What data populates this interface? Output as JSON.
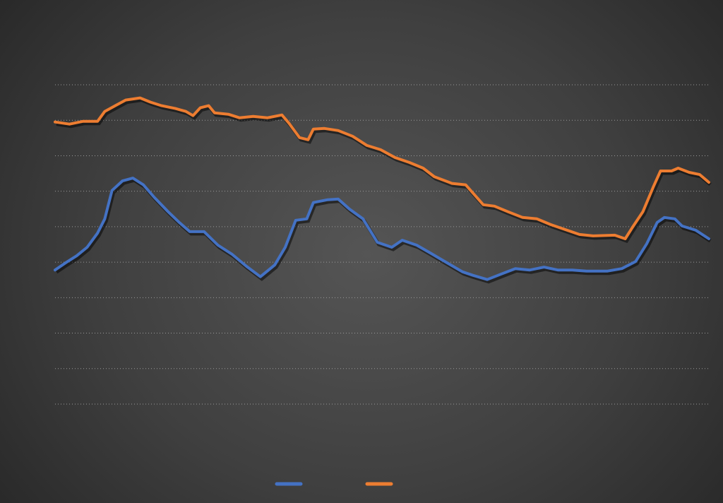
{
  "chart_data": {
    "type": "line",
    "title": "",
    "xlabel": "",
    "ylabel": "",
    "xlim": [
      0,
      100
    ],
    "ylim": [
      0,
      9
    ],
    "grid": true,
    "gridline_style": "dotted",
    "legend_position": "bottom",
    "background": "#3a3a3a",
    "series": [
      {
        "color": "#4472C4",
        "x": [
          0,
          1.6,
          3.3,
          4.9,
          6.5,
          7.6,
          8.7,
          10.3,
          11.9,
          13.5,
          15.2,
          17.3,
          19,
          20.6,
          22.8,
          24.9,
          27.1,
          29.3,
          31.4,
          33.6,
          35.2,
          36.8,
          38.5,
          39.5,
          41.7,
          43.3,
          45,
          47.1,
          49.3,
          51.5,
          53.1,
          55.3,
          57.4,
          59.6,
          62.3,
          63.9,
          66.1,
          68.3,
          70.4,
          72.6,
          74.8,
          76.9,
          79.1,
          81.3,
          84.5,
          86.7,
          88.8,
          90.5,
          92.1,
          93.2,
          94.8,
          95.9,
          98,
          100
        ],
        "y": [
          3.78,
          3.98,
          4.18,
          4.42,
          4.82,
          5.22,
          6.02,
          6.29,
          6.37,
          6.18,
          5.82,
          5.42,
          5.12,
          4.86,
          4.86,
          4.48,
          4.22,
          3.88,
          3.59,
          3.92,
          4.42,
          5.18,
          5.22,
          5.68,
          5.76,
          5.78,
          5.5,
          5.22,
          4.56,
          4.42,
          4.62,
          4.48,
          4.26,
          4.02,
          3.73,
          3.63,
          3.51,
          3.67,
          3.82,
          3.78,
          3.86,
          3.78,
          3.78,
          3.75,
          3.75,
          3.82,
          4.02,
          4.52,
          5.12,
          5.26,
          5.22,
          5.02,
          4.9,
          4.66
        ]
      },
      {
        "color": "#ED7D31",
        "x": [
          0,
          2.2,
          4.3,
          6.5,
          7.6,
          9.2,
          10.8,
          13,
          14.6,
          16.3,
          18.4,
          20,
          21.1,
          22.2,
          23.5,
          24.4,
          26.5,
          28.2,
          30.3,
          32.5,
          34.7,
          35.8,
          37.4,
          38.7,
          39.5,
          41.2,
          43.3,
          45.5,
          47.7,
          49.8,
          52,
          54.2,
          56.3,
          58,
          60.7,
          62.8,
          65.5,
          67.2,
          69.3,
          71.5,
          73.7,
          75.8,
          78,
          80.2,
          82.3,
          85.6,
          87.2,
          88.3,
          89.9,
          91.5,
          92.6,
          94.3,
          95.3,
          97,
          98.6,
          100
        ],
        "y": [
          7.95,
          7.89,
          7.97,
          7.97,
          8.25,
          8.41,
          8.57,
          8.63,
          8.51,
          8.41,
          8.33,
          8.25,
          8.13,
          8.35,
          8.41,
          8.21,
          8.17,
          8.07,
          8.11,
          8.07,
          8.15,
          7.91,
          7.51,
          7.45,
          7.75,
          7.77,
          7.71,
          7.55,
          7.29,
          7.17,
          6.95,
          6.81,
          6.65,
          6.41,
          6.22,
          6.18,
          5.62,
          5.58,
          5.42,
          5.26,
          5.22,
          5.06,
          4.92,
          4.78,
          4.74,
          4.76,
          4.66,
          4.98,
          5.42,
          6.12,
          6.57,
          6.57,
          6.65,
          6.53,
          6.47,
          6.25
        ]
      }
    ]
  }
}
